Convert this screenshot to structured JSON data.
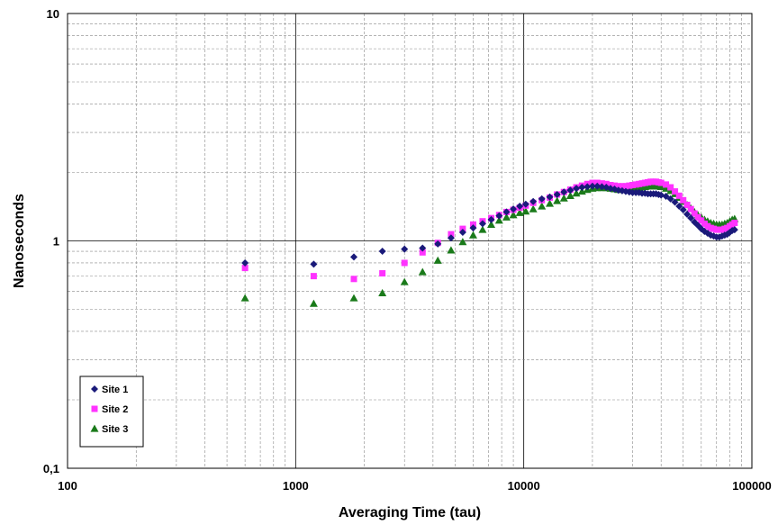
{
  "chart_data": {
    "type": "scatter",
    "xlabel": "Averaging Time (tau)",
    "ylabel": "Nanoseconds",
    "x_scale": "log",
    "y_scale": "log",
    "xlim": [
      100,
      100000
    ],
    "ylim": [
      0.1,
      10
    ],
    "grid": true,
    "legend_position": "bottom-left",
    "x_tick_labels": [
      "100",
      "1000",
      "10000",
      "100000"
    ],
    "y_tick_labels": [
      "0,1",
      "1",
      "10"
    ],
    "series": [
      {
        "name": "Site 1",
        "marker": "diamond",
        "color": "#1a1a7a",
        "points": [
          [
            600,
            0.8
          ],
          [
            1200,
            0.79
          ],
          [
            1800,
            0.85
          ],
          [
            2400,
            0.9
          ],
          [
            3000,
            0.92
          ],
          [
            3600,
            0.93
          ],
          [
            4200,
            0.97
          ],
          [
            4800,
            1.03
          ],
          [
            5400,
            1.09
          ],
          [
            6000,
            1.14
          ],
          [
            6600,
            1.19
          ],
          [
            7200,
            1.24
          ],
          [
            7800,
            1.29
          ],
          [
            8400,
            1.34
          ],
          [
            9000,
            1.38
          ],
          [
            9600,
            1.42
          ],
          [
            10200,
            1.45
          ],
          [
            11000,
            1.49
          ],
          [
            12000,
            1.53
          ],
          [
            13000,
            1.56
          ],
          [
            14000,
            1.6
          ],
          [
            15000,
            1.64
          ],
          [
            16000,
            1.67
          ],
          [
            17000,
            1.7
          ],
          [
            18000,
            1.72
          ],
          [
            19000,
            1.73
          ],
          [
            20000,
            1.74
          ],
          [
            21000,
            1.74
          ],
          [
            22000,
            1.73
          ],
          [
            23000,
            1.72
          ],
          [
            24000,
            1.7
          ],
          [
            25000,
            1.69
          ],
          [
            26000,
            1.67
          ],
          [
            27000,
            1.66
          ],
          [
            28000,
            1.65
          ],
          [
            29000,
            1.64
          ],
          [
            30000,
            1.63
          ],
          [
            31000,
            1.63
          ],
          [
            32000,
            1.63
          ],
          [
            33000,
            1.62
          ],
          [
            34000,
            1.62
          ],
          [
            35000,
            1.61
          ],
          [
            36000,
            1.61
          ],
          [
            37000,
            1.61
          ],
          [
            38000,
            1.61
          ],
          [
            39000,
            1.6
          ],
          [
            40000,
            1.59
          ],
          [
            42000,
            1.57
          ],
          [
            44000,
            1.53
          ],
          [
            46000,
            1.48
          ],
          [
            48000,
            1.42
          ],
          [
            50000,
            1.37
          ],
          [
            52000,
            1.31
          ],
          [
            54000,
            1.26
          ],
          [
            56000,
            1.21
          ],
          [
            58000,
            1.17
          ],
          [
            60000,
            1.13
          ],
          [
            62000,
            1.1
          ],
          [
            64000,
            1.08
          ],
          [
            66000,
            1.06
          ],
          [
            68000,
            1.05
          ],
          [
            70000,
            1.04
          ],
          [
            72000,
            1.04
          ],
          [
            74000,
            1.05
          ],
          [
            76000,
            1.06
          ],
          [
            78000,
            1.07
          ],
          [
            80000,
            1.09
          ],
          [
            82000,
            1.11
          ],
          [
            84000,
            1.12
          ]
        ]
      },
      {
        "name": "Site 2",
        "marker": "square",
        "color": "#ff33ff",
        "points": [
          [
            600,
            0.76
          ],
          [
            1200,
            0.7
          ],
          [
            1800,
            0.68
          ],
          [
            2400,
            0.72
          ],
          [
            3000,
            0.8
          ],
          [
            3600,
            0.89
          ],
          [
            4200,
            0.98
          ],
          [
            4800,
            1.07
          ],
          [
            5400,
            1.13
          ],
          [
            6000,
            1.18
          ],
          [
            6600,
            1.22
          ],
          [
            7200,
            1.26
          ],
          [
            7800,
            1.3
          ],
          [
            8400,
            1.34
          ],
          [
            9000,
            1.37
          ],
          [
            9600,
            1.4
          ],
          [
            10200,
            1.43
          ],
          [
            11000,
            1.47
          ],
          [
            12000,
            1.51
          ],
          [
            13000,
            1.55
          ],
          [
            14000,
            1.6
          ],
          [
            15000,
            1.64
          ],
          [
            16000,
            1.68
          ],
          [
            17000,
            1.72
          ],
          [
            18000,
            1.75
          ],
          [
            19000,
            1.78
          ],
          [
            20000,
            1.8
          ],
          [
            21000,
            1.8
          ],
          [
            22000,
            1.79
          ],
          [
            23000,
            1.78
          ],
          [
            24000,
            1.76
          ],
          [
            25000,
            1.75
          ],
          [
            26000,
            1.74
          ],
          [
            27000,
            1.74
          ],
          [
            28000,
            1.74
          ],
          [
            29000,
            1.75
          ],
          [
            30000,
            1.76
          ],
          [
            31000,
            1.77
          ],
          [
            32000,
            1.78
          ],
          [
            33000,
            1.79
          ],
          [
            34000,
            1.8
          ],
          [
            35000,
            1.81
          ],
          [
            36000,
            1.82
          ],
          [
            37000,
            1.82
          ],
          [
            38000,
            1.82
          ],
          [
            39000,
            1.81
          ],
          [
            40000,
            1.8
          ],
          [
            42000,
            1.77
          ],
          [
            44000,
            1.72
          ],
          [
            46000,
            1.65
          ],
          [
            48000,
            1.58
          ],
          [
            50000,
            1.51
          ],
          [
            52000,
            1.44
          ],
          [
            54000,
            1.38
          ],
          [
            56000,
            1.32
          ],
          [
            58000,
            1.27
          ],
          [
            60000,
            1.23
          ],
          [
            62000,
            1.19
          ],
          [
            64000,
            1.16
          ],
          [
            66000,
            1.14
          ],
          [
            68000,
            1.13
          ],
          [
            70000,
            1.12
          ],
          [
            72000,
            1.12
          ],
          [
            74000,
            1.12
          ],
          [
            76000,
            1.13
          ],
          [
            78000,
            1.14
          ],
          [
            80000,
            1.16
          ],
          [
            82000,
            1.18
          ],
          [
            84000,
            1.2
          ]
        ]
      },
      {
        "name": "Site 3",
        "marker": "triangle",
        "color": "#1a7a1a",
        "points": [
          [
            600,
            0.56
          ],
          [
            1200,
            0.53
          ],
          [
            1800,
            0.56
          ],
          [
            2400,
            0.59
          ],
          [
            3000,
            0.66
          ],
          [
            3600,
            0.73
          ],
          [
            4200,
            0.82
          ],
          [
            4800,
            0.91
          ],
          [
            5400,
            0.99
          ],
          [
            6000,
            1.06
          ],
          [
            6600,
            1.12
          ],
          [
            7200,
            1.18
          ],
          [
            7800,
            1.23
          ],
          [
            8400,
            1.27
          ],
          [
            9000,
            1.3
          ],
          [
            9600,
            1.33
          ],
          [
            10200,
            1.35
          ],
          [
            11000,
            1.38
          ],
          [
            12000,
            1.42
          ],
          [
            13000,
            1.46
          ],
          [
            14000,
            1.5
          ],
          [
            15000,
            1.54
          ],
          [
            16000,
            1.58
          ],
          [
            17000,
            1.62
          ],
          [
            18000,
            1.65
          ],
          [
            19000,
            1.68
          ],
          [
            20000,
            1.7
          ],
          [
            21000,
            1.71
          ],
          [
            22000,
            1.71
          ],
          [
            23000,
            1.71
          ],
          [
            24000,
            1.7
          ],
          [
            25000,
            1.69
          ],
          [
            26000,
            1.68
          ],
          [
            27000,
            1.68
          ],
          [
            28000,
            1.68
          ],
          [
            29000,
            1.68
          ],
          [
            30000,
            1.69
          ],
          [
            31000,
            1.7
          ],
          [
            32000,
            1.71
          ],
          [
            33000,
            1.72
          ],
          [
            34000,
            1.73
          ],
          [
            35000,
            1.74
          ],
          [
            36000,
            1.74
          ],
          [
            37000,
            1.74
          ],
          [
            38000,
            1.74
          ],
          [
            39000,
            1.74
          ],
          [
            40000,
            1.73
          ],
          [
            42000,
            1.7
          ],
          [
            44000,
            1.66
          ],
          [
            46000,
            1.61
          ],
          [
            48000,
            1.55
          ],
          [
            50000,
            1.49
          ],
          [
            52000,
            1.44
          ],
          [
            54000,
            1.39
          ],
          [
            56000,
            1.34
          ],
          [
            58000,
            1.3
          ],
          [
            60000,
            1.27
          ],
          [
            62000,
            1.24
          ],
          [
            64000,
            1.22
          ],
          [
            66000,
            1.2
          ],
          [
            68000,
            1.19
          ],
          [
            70000,
            1.18
          ],
          [
            72000,
            1.18
          ],
          [
            74000,
            1.18
          ],
          [
            76000,
            1.19
          ],
          [
            78000,
            1.2
          ],
          [
            80000,
            1.22
          ],
          [
            82000,
            1.24
          ],
          [
            84000,
            1.25
          ]
        ]
      }
    ]
  }
}
